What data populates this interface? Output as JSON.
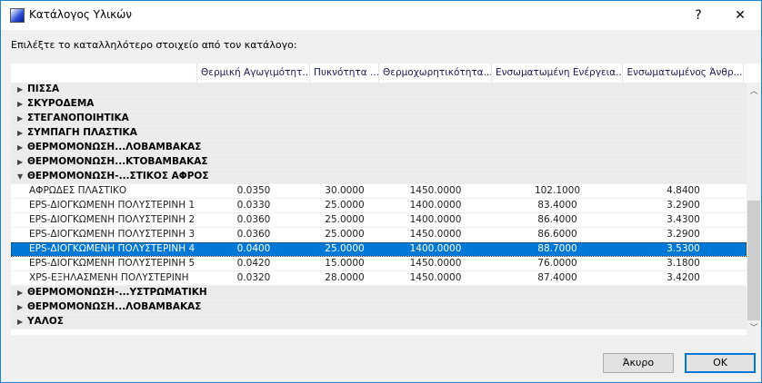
{
  "window": {
    "title": "Κατάλογος Υλικών",
    "help": "?",
    "close": "✕"
  },
  "prompt": "Επιλέξτε το καταλληλότερο στοιχείο από τον κατάλογο:",
  "columns": [
    "",
    "Θερμική Αγωγιμότητ...",
    "Πυκνότητα ...",
    "Θερμοχωρητικότητα...",
    "Ενσωματωμένη Ενέργεια...",
    "Ενσωματωμένος Άνθρ..."
  ],
  "groups_before": [
    {
      "label": "ΠΙΣΣΑ",
      "expanded": false
    },
    {
      "label": "ΣΚΥΡΟΔΕΜΑ",
      "expanded": false
    },
    {
      "label": "ΣΤΕΓΑΝΟΠΟΙΗΤΙΚΑ",
      "expanded": false
    },
    {
      "label": "ΣΥΜΠΑΓΗ ΠΛΑΣΤΙΚΑ",
      "expanded": false
    },
    {
      "label": "ΘΕΡΜΟΜΟΝΩΣΗ...ΛΟΒΑΜΒΑΚΑΣ",
      "expanded": false
    },
    {
      "label": "ΘΕΡΜΟΜΟΝΩΣΗ...ΚΤΟΒΑΜΒΑΚΑΣ",
      "expanded": false
    },
    {
      "label": "ΘΕΡΜΟΜΟΝΩΣΗ-...ΣΤΙΚΟΣ ΑΦΡΟΣ",
      "expanded": true
    }
  ],
  "items": [
    {
      "name": "ΑΦΡΩΔΕΣ ΠΛΑΣΤΙΚΟ",
      "v": [
        "0.0350",
        "30.0000",
        "1450.0000",
        "102.1000",
        "4.8400"
      ]
    },
    {
      "name": "EPS-ΔΙΟΓΚΩΜΕΝΗ ΠΟΛΥΣΤΕΡΙΝΗ 1",
      "v": [
        "0.0330",
        "25.0000",
        "1400.0000",
        "83.4000",
        "3.2900"
      ]
    },
    {
      "name": "EPS-ΔΙΟΓΚΩΜΕΝΗ ΠΟΛΥΣΤΕΡΙΝΗ 2",
      "v": [
        "0.0360",
        "25.0000",
        "1400.0000",
        "86.4000",
        "3.4300"
      ]
    },
    {
      "name": "EPS-ΔΙΟΓΚΩΜΕΝΗ ΠΟΛΥΣΤΕΡΙΝΗ 3",
      "v": [
        "0.0360",
        "25.0000",
        "1450.0000",
        "86.6000",
        "3.2900"
      ]
    },
    {
      "name": "EPS-ΔΙΟΓΚΩΜΕΝΗ ΠΟΛΥΣΤΕΡΙΝΗ 4",
      "v": [
        "0.0400",
        "25.0000",
        "1400.0000",
        "88.7000",
        "3.5300"
      ],
      "selected": true
    },
    {
      "name": "EPS-ΔΙΟΓΚΩΜΕΝΗ ΠΟΛΥΣΤΕΡΙΝΗ 5",
      "v": [
        "0.0420",
        "15.0000",
        "1450.0000",
        "76.0000",
        "3.1800"
      ]
    },
    {
      "name": "XPS-ΕΞΗΛΑΣΜΕΝΗ ΠΟΛΥΣΤΕΡΙΝΗ",
      "v": [
        "0.0320",
        "28.0000",
        "1450.0000",
        "87.4000",
        "3.4200"
      ]
    }
  ],
  "groups_after": [
    {
      "label": "ΘΕΡΜΟΜΟΝΩΣΗ-...ΥΣΤΡΩΜΑΤΙΚΗ",
      "expanded": false
    },
    {
      "label": "ΘΕΡΜΟΜΟΝΩΣΗ...ΛΟΒΑΜΒΑΚΑΣ",
      "expanded": false
    },
    {
      "label": "ΥΑΛΟΣ",
      "expanded": false
    }
  ],
  "buttons": {
    "cancel": "Άκυρο",
    "ok": "OK"
  },
  "colors": {
    "selection": "#0078d7",
    "accent": "#1883d7"
  }
}
